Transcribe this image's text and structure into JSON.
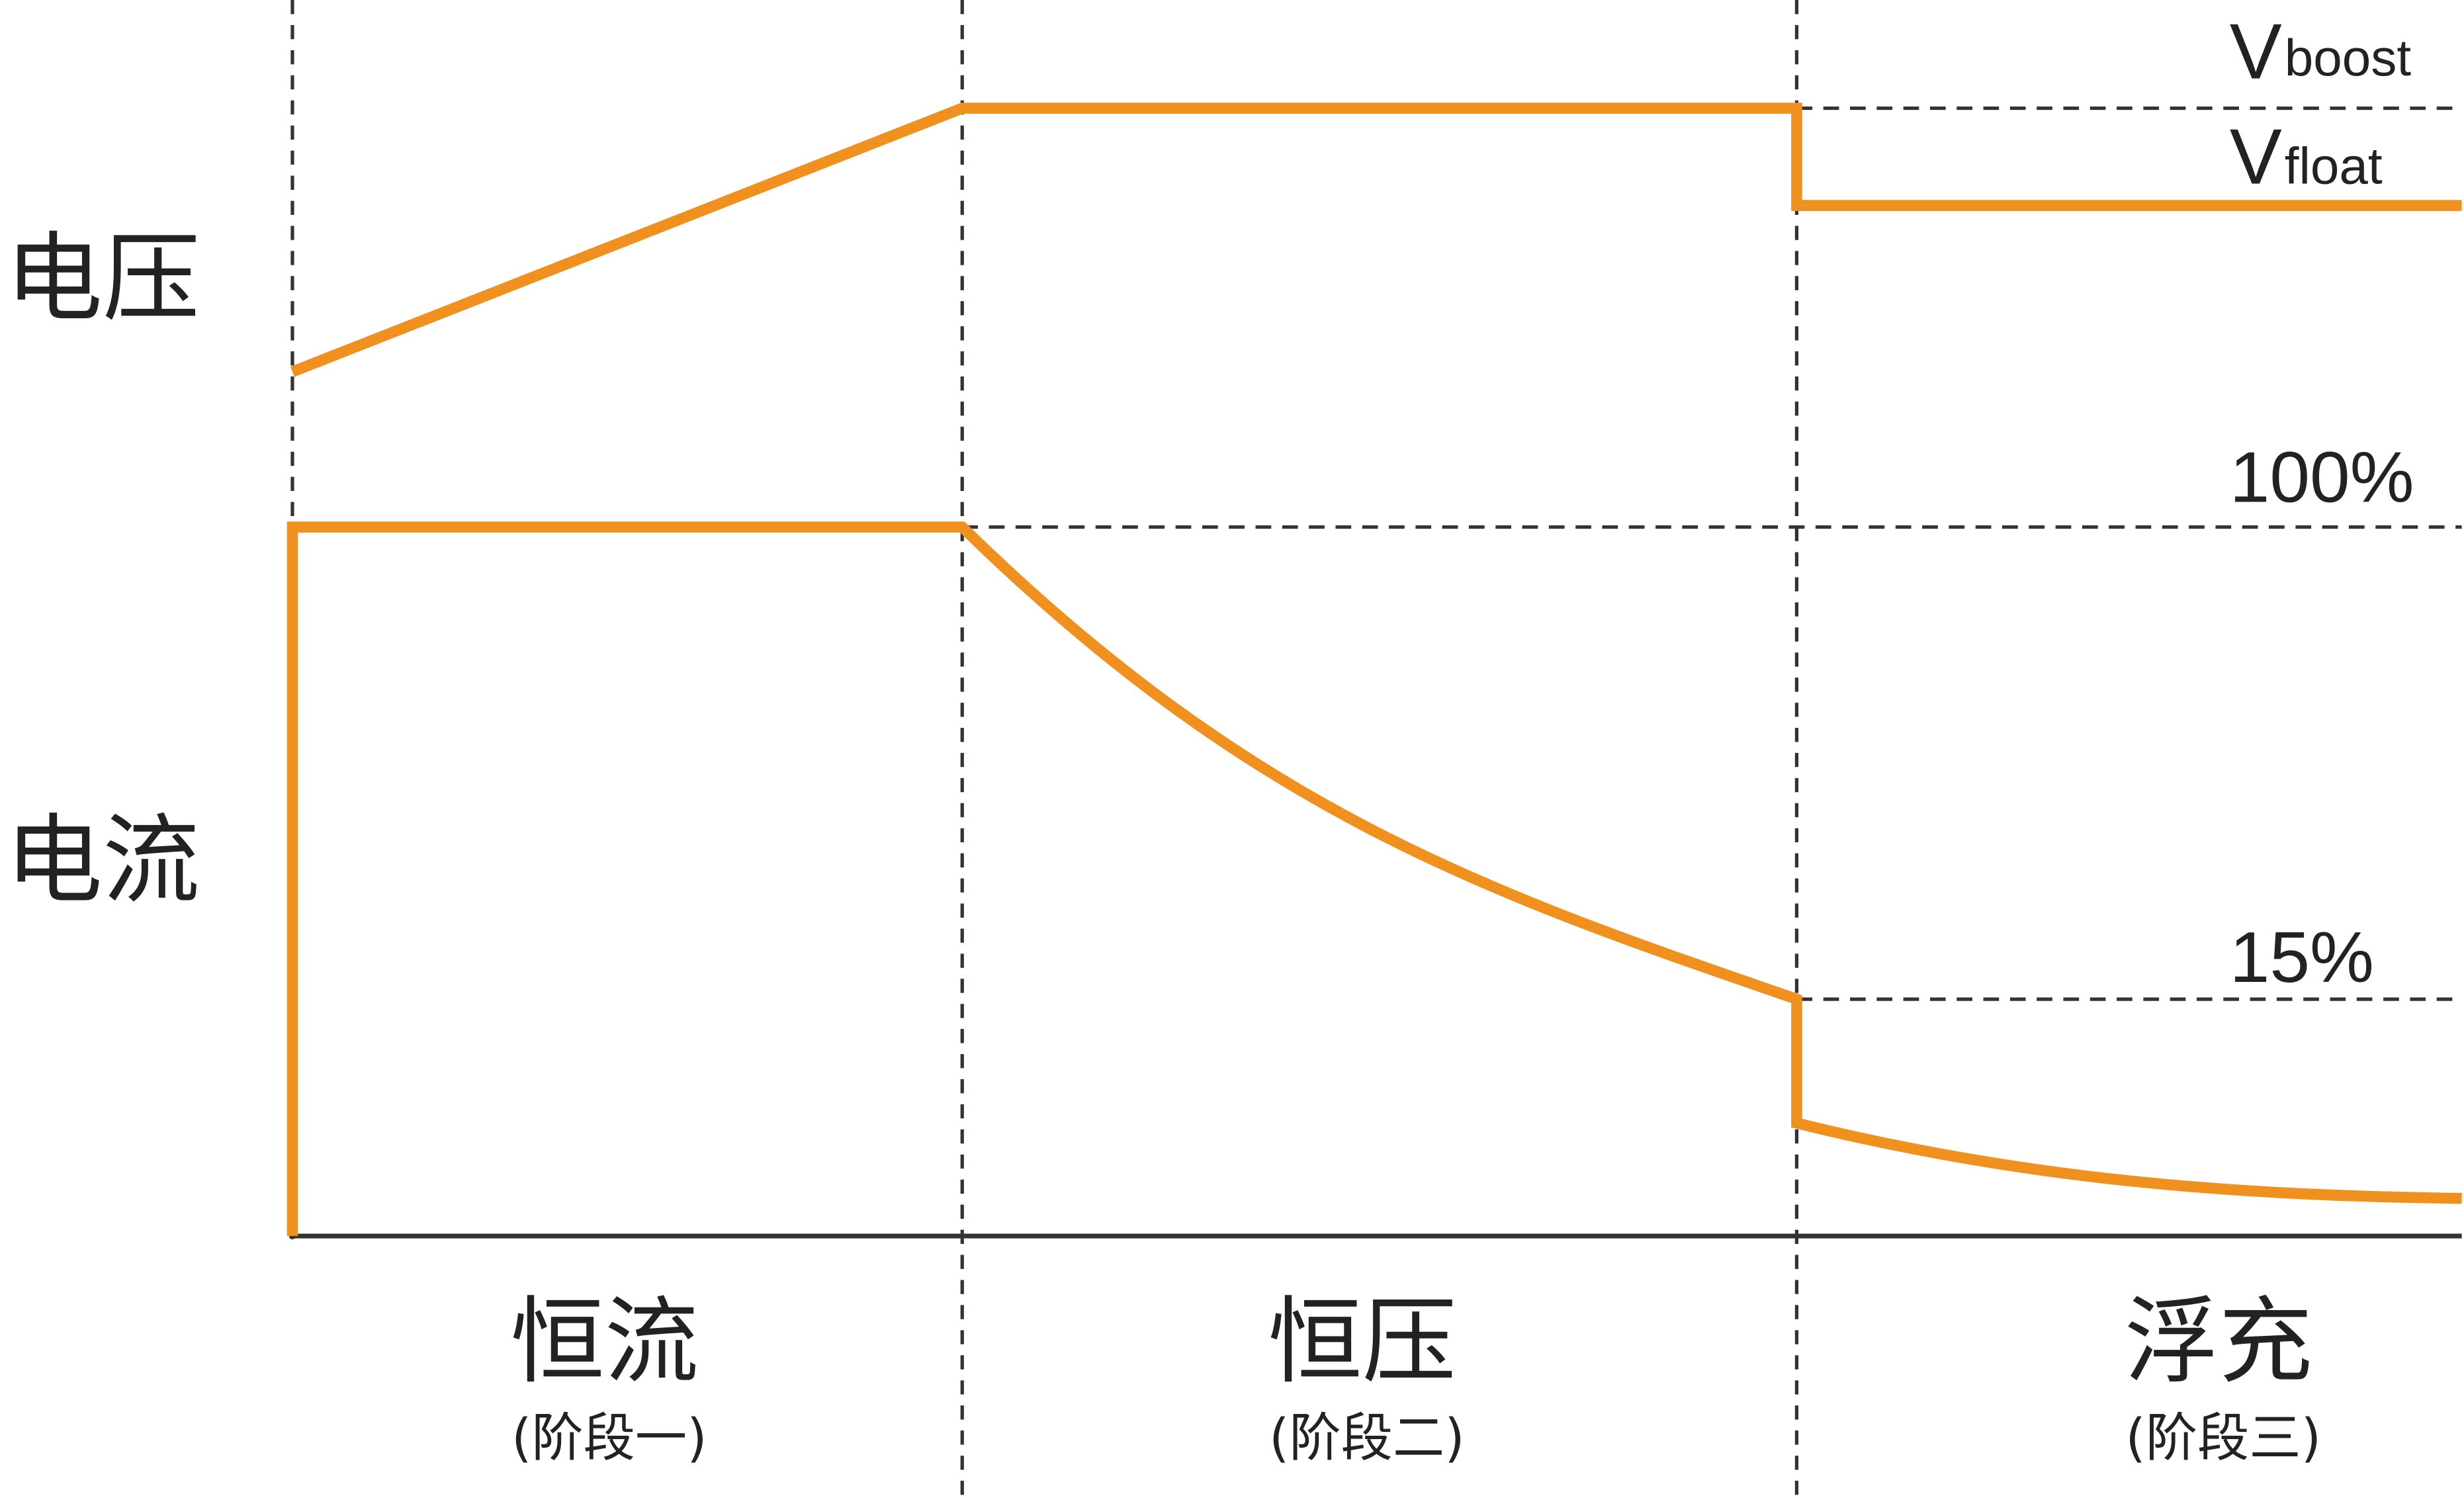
{
  "labels": {
    "voltage_axis": "电压",
    "current_axis": "电流",
    "v_boost_main": "V",
    "v_boost_sub": "boost",
    "v_float_main": "V",
    "v_float_sub": "float",
    "current_100": "100%",
    "current_15": "15%"
  },
  "stages": [
    {
      "name": "恒流",
      "sub": "(阶段一)"
    },
    {
      "name": "恒压",
      "sub": "(阶段二)"
    },
    {
      "name": "浮充",
      "sub": "(阶段三)"
    }
  ],
  "colors": {
    "curve": "#F0901E",
    "guide": "#333333",
    "text": "#222222",
    "background": "#ffffff"
  }
}
